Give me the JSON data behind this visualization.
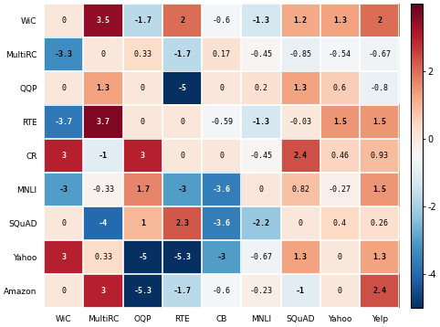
{
  "row_labels": [
    "WiC",
    "MultiRC",
    "QQP",
    "RTE",
    "CR",
    "MNLI",
    "SQuAD",
    "Yahoo",
    "Amazon"
  ],
  "col_labels": [
    "WiC",
    "MultiRC",
    "OQP",
    "RTE",
    "CB",
    "MNLI",
    "SQuAD",
    "Yahoo",
    "Yelp"
  ],
  "values": [
    [
      0,
      3.5,
      -1.7,
      2,
      -0.6,
      -1.3,
      1.2,
      1.3,
      2
    ],
    [
      -3.3,
      0,
      0.33,
      -1.7,
      0.17,
      -0.45,
      -0.85,
      -0.54,
      -0.67
    ],
    [
      0,
      1.3,
      0,
      -5,
      0,
      0.2,
      1.3,
      0.6,
      -0.8
    ],
    [
      -3.7,
      3.7,
      0,
      0,
      -0.59,
      -1.3,
      -0.03,
      1.5,
      1.5
    ],
    [
      3,
      -1,
      3,
      0,
      0,
      -0.45,
      2.4,
      0.46,
      0.93
    ],
    [
      -3,
      -0.33,
      1.7,
      -3,
      -3.6,
      0,
      0.82,
      -0.27,
      1.5
    ],
    [
      0,
      -4,
      1,
      2.3,
      -3.6,
      -2.2,
      0,
      0.4,
      0.26
    ],
    [
      3,
      0.33,
      -5,
      -5.3,
      -3,
      -0.67,
      1.3,
      0,
      1.3
    ],
    [
      0,
      3,
      -5.3,
      -1.7,
      -0.6,
      -0.23,
      -1,
      0,
      2.4
    ]
  ],
  "vmin": -5,
  "vmax": 4,
  "cmap": "RdBu_r",
  "figsize": [
    4.82,
    3.58
  ],
  "dpi": 100,
  "colorbar_ticks": [
    2,
    0,
    -2,
    -4
  ],
  "fontsize_cell": 6.0,
  "fontsize_axis": 6.5,
  "fontsize_cbar": 7.0
}
